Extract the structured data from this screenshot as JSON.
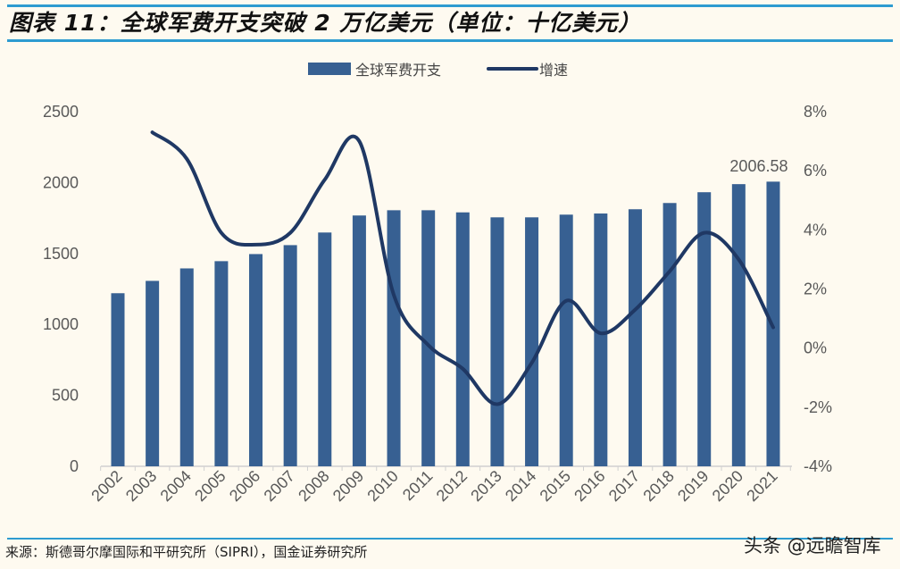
{
  "title": "图表 11：全球军费开支突破 2 万亿美元（单位：十亿美元）",
  "source": "来源：斯德哥尔摩国际和平研究所（SIPRI），国金证券研究所",
  "watermark": "头条 @远瞻智库",
  "colors": {
    "bar": "#376092",
    "line": "#1f3864",
    "rule": "#2e9bd0"
  },
  "chart_data": {
    "type": "bar+line",
    "categories": [
      "2002",
      "2003",
      "2004",
      "2005",
      "2006",
      "2007",
      "2008",
      "2009",
      "2010",
      "2011",
      "2012",
      "2013",
      "2014",
      "2015",
      "2016",
      "2017",
      "2018",
      "2019",
      "2020",
      "2021"
    ],
    "series": [
      {
        "name": "全球军费开支",
        "type": "bar",
        "axis": "left",
        "values": [
          1220,
          1307,
          1395,
          1446,
          1496,
          1559,
          1648,
          1768,
          1805,
          1805,
          1790,
          1755,
          1755,
          1774,
          1782,
          1812,
          1856,
          1932,
          1989,
          2006.58
        ]
      },
      {
        "name": "增速",
        "type": "line",
        "axis": "right",
        "unit": "%",
        "values": [
          null,
          7.3,
          6.4,
          3.9,
          3.5,
          3.9,
          5.7,
          7.0,
          1.8,
          0.1,
          -0.7,
          -1.9,
          -0.5,
          1.6,
          0.5,
          1.3,
          2.6,
          3.9,
          3.0,
          0.7
        ]
      }
    ],
    "left_axis": {
      "ylim": [
        0,
        2500
      ],
      "ticks": [
        "0",
        "500",
        "1000",
        "1500",
        "2000",
        "2500"
      ]
    },
    "right_axis": {
      "ylim": [
        -4,
        8
      ],
      "ticks": [
        "-4%",
        "-2%",
        "0%",
        "2%",
        "4%",
        "6%",
        "8%"
      ]
    },
    "data_labels": [
      {
        "category": "2021",
        "text": "2006.58"
      }
    ],
    "legend_position": "top-center",
    "grid": false
  }
}
